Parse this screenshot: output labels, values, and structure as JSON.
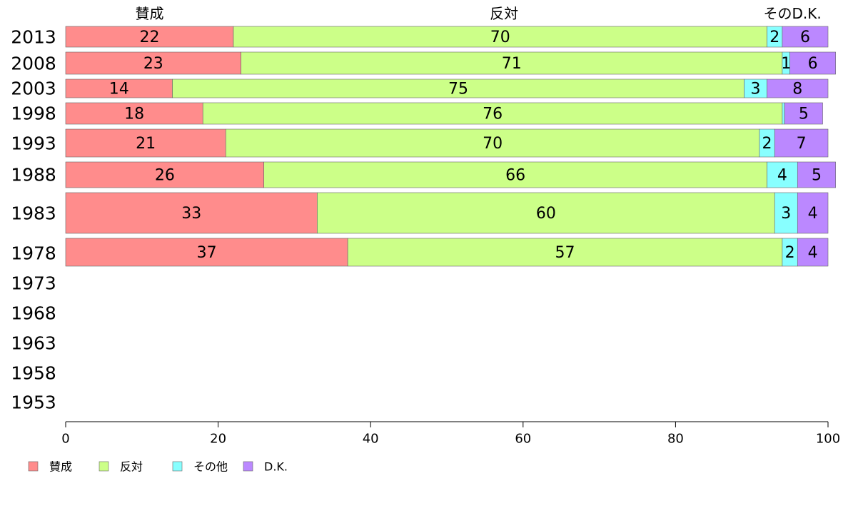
{
  "chart_data": {
    "type": "bar",
    "orientation": "horizontal",
    "stacked": true,
    "categories": [
      "2013",
      "2008",
      "2003",
      "1998",
      "1993",
      "1988",
      "1983",
      "1978",
      "1973",
      "1968",
      "1963",
      "1958",
      "1953"
    ],
    "series": [
      {
        "name": "賛成",
        "color": "#FF8C8C",
        "values": [
          22,
          23,
          14,
          18,
          21,
          26,
          33,
          37,
          null,
          null,
          null,
          null,
          null
        ]
      },
      {
        "name": "反対",
        "color": "#CCFF88",
        "values": [
          70,
          71,
          75,
          76,
          70,
          66,
          60,
          57,
          null,
          null,
          null,
          null,
          null
        ]
      },
      {
        "name": "その他",
        "color": "#88FFFF",
        "values": [
          2,
          1,
          3,
          0.3,
          2,
          4,
          3,
          2,
          null,
          null,
          null,
          null,
          null
        ]
      },
      {
        "name": "D.K.",
        "color": "#BB88FF",
        "values": [
          6,
          6,
          8,
          5,
          7,
          5,
          4,
          4,
          null,
          null,
          null,
          null,
          null
        ]
      }
    ],
    "value_labels": [
      [
        "22",
        "70",
        "2",
        "6"
      ],
      [
        "23",
        "71",
        "1",
        "6"
      ],
      [
        "14",
        "75",
        "3",
        "8"
      ],
      [
        "18",
        "76",
        "",
        "5"
      ],
      [
        "21",
        "70",
        "2",
        "7"
      ],
      [
        "26",
        "66",
        "4",
        "5"
      ],
      [
        "33",
        "60",
        "3",
        "4"
      ],
      [
        "37",
        "57",
        "2",
        "4"
      ]
    ],
    "top_labels": [
      {
        "text": "賛成",
        "at": 11
      },
      {
        "text": "反対",
        "at": 57.5
      },
      {
        "text": "その",
        "at": 93.4
      },
      {
        "text": "D.K.",
        "at": 97.2
      }
    ],
    "xlim": [
      0,
      100
    ],
    "xticks": [
      0,
      20,
      40,
      60,
      80,
      100
    ],
    "xlabel": "",
    "ylabel": "",
    "grid": false,
    "legend": {
      "position": "bottom-left",
      "items": [
        "賛成",
        "反対",
        "その他",
        "D.K."
      ]
    }
  }
}
